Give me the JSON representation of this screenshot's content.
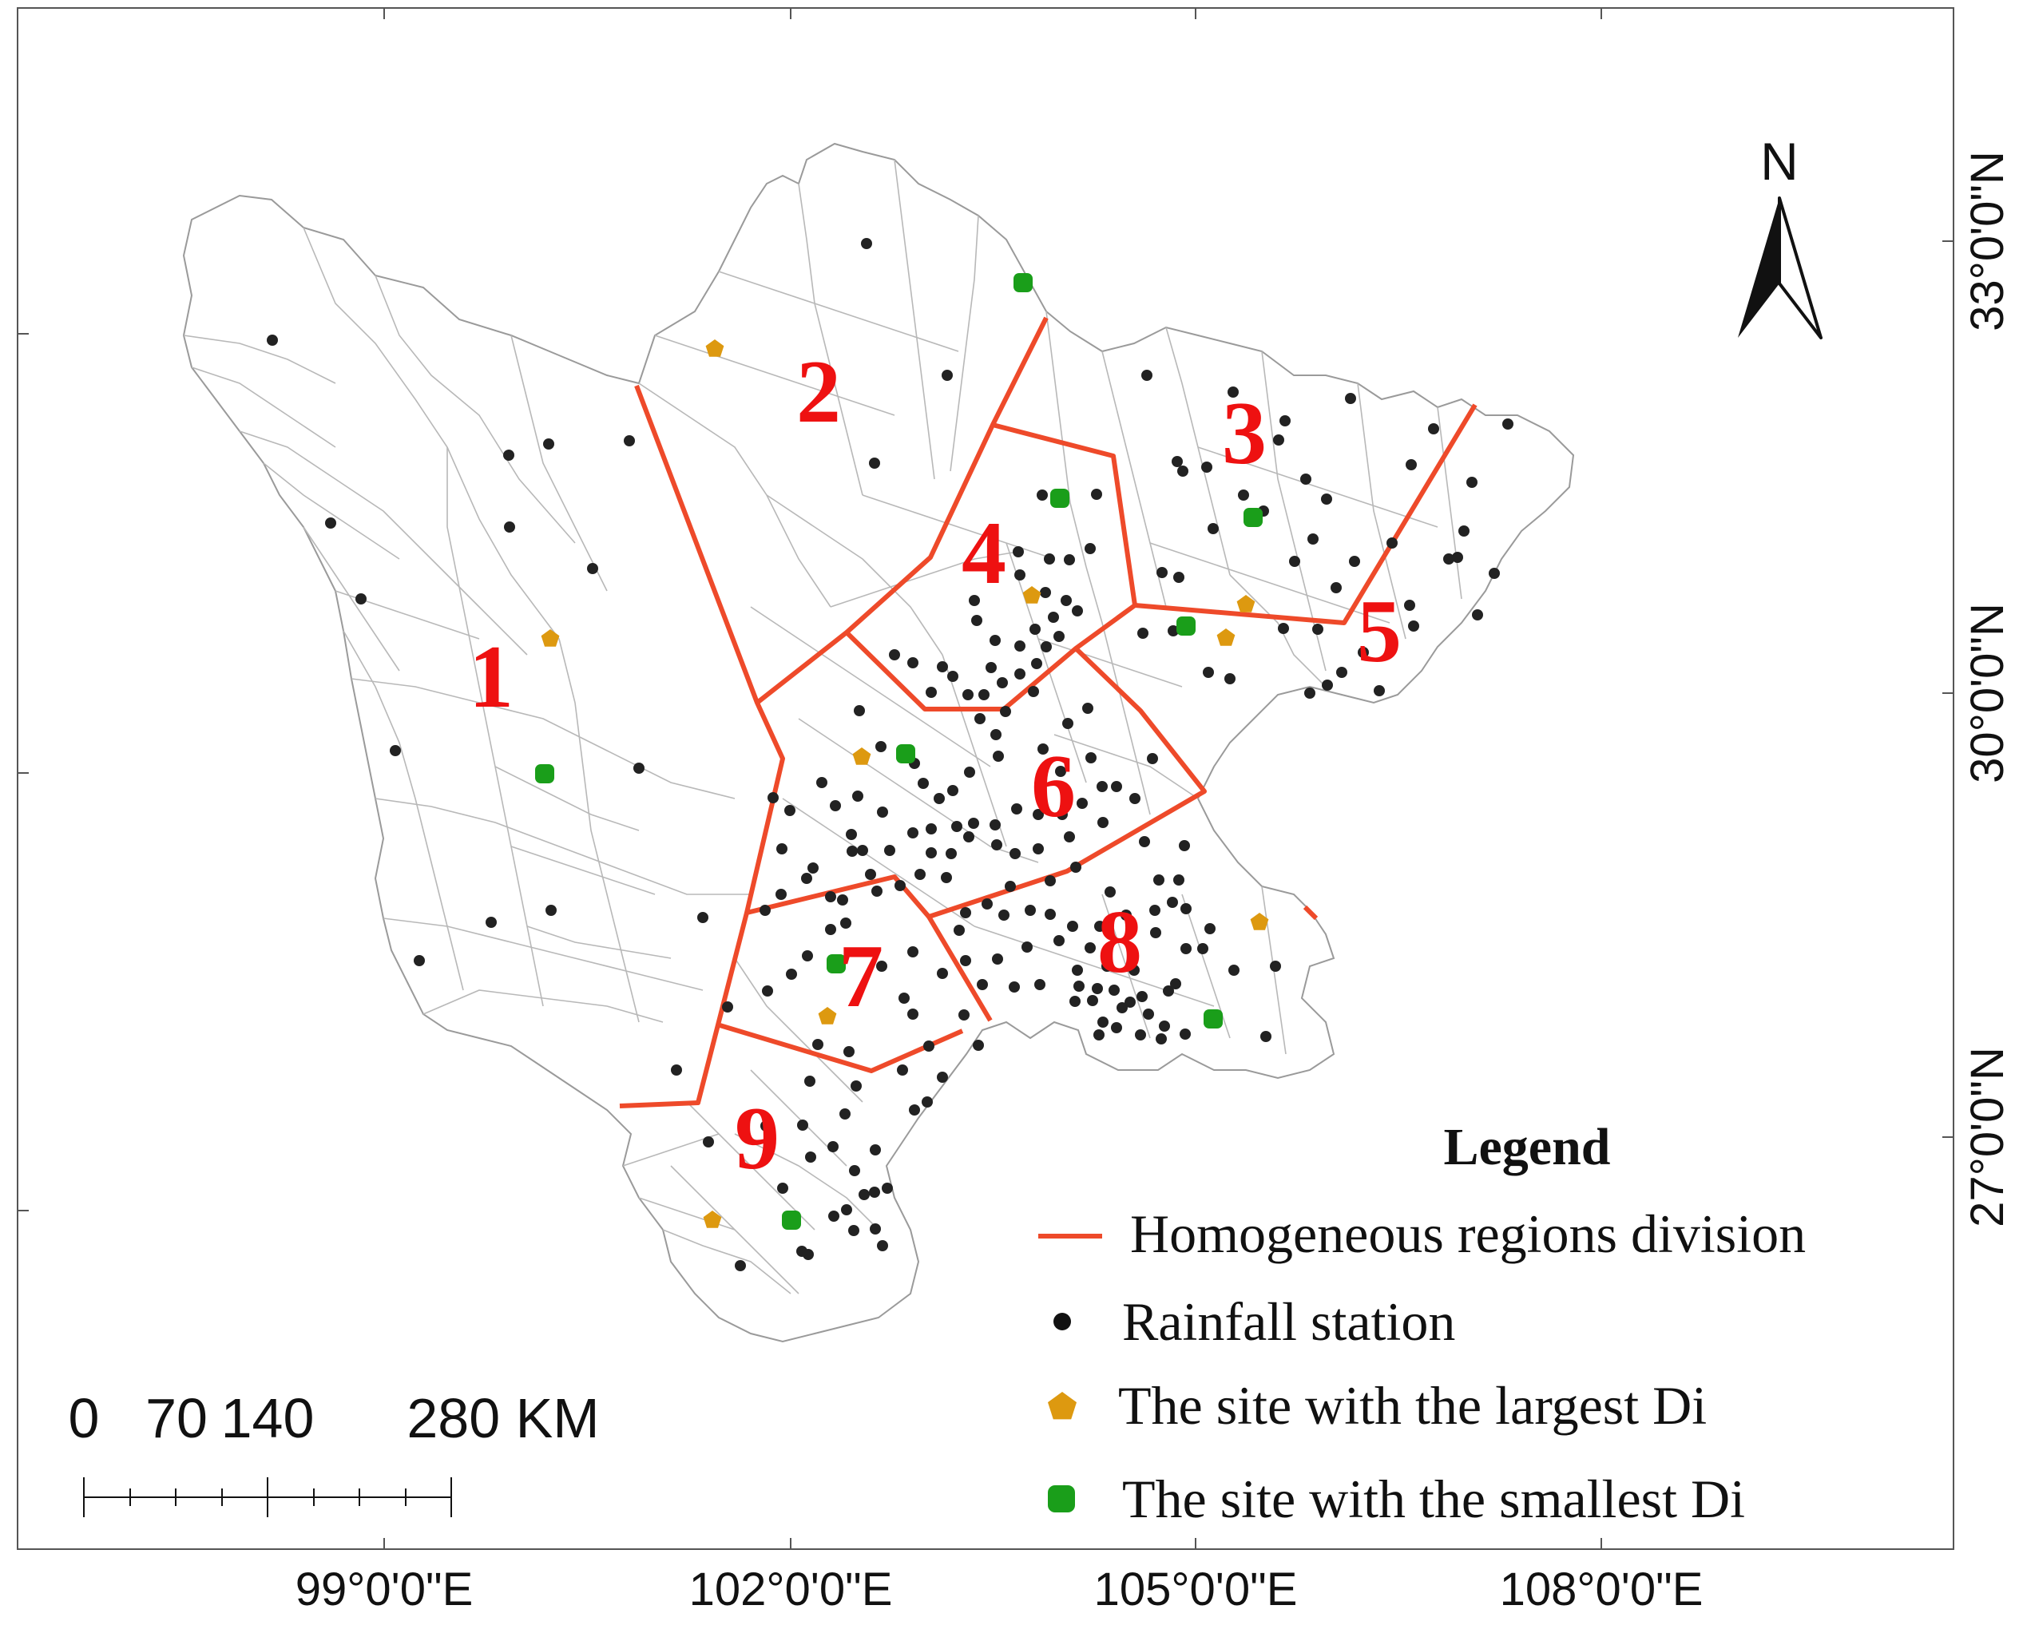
{
  "map": {
    "region_labels": [
      "1",
      "2",
      "3",
      "4",
      "5",
      "6",
      "7",
      "8",
      "9"
    ],
    "north_label": "N",
    "x_axis_labels": [
      "99°0'0\"E",
      "102°0'0\"E",
      "105°0'0\"E",
      "108°0'0\"E"
    ],
    "y_axis_labels": [
      "33°0'0\"N",
      "30°0'0\"N",
      "27°0'0\"N"
    ],
    "scale_bar": {
      "labels": [
        "0",
        "70",
        "140",
        "280 KM"
      ],
      "unit": "KM"
    },
    "legend": {
      "title": "Legend",
      "items": [
        {
          "label": "Homogeneous regions division",
          "symbol": "line",
          "color": "#ee4a2a"
        },
        {
          "label": "Rainfall station",
          "symbol": "circle",
          "color": "#222222"
        },
        {
          "label": "The site with the largest Di",
          "symbol": "pentagon",
          "color": "#dd9910"
        },
        {
          "label": "The site with the smallest Di",
          "symbol": "rounded-square",
          "color": "#1a9e1a"
        }
      ]
    },
    "colors": {
      "division_line": "#ee4a2a",
      "region_label": "#ee1111",
      "station": "#222222",
      "largest_di": "#dd9910",
      "smallest_di": "#1a9e1a",
      "county_border": "#9a9a9a"
    }
  }
}
